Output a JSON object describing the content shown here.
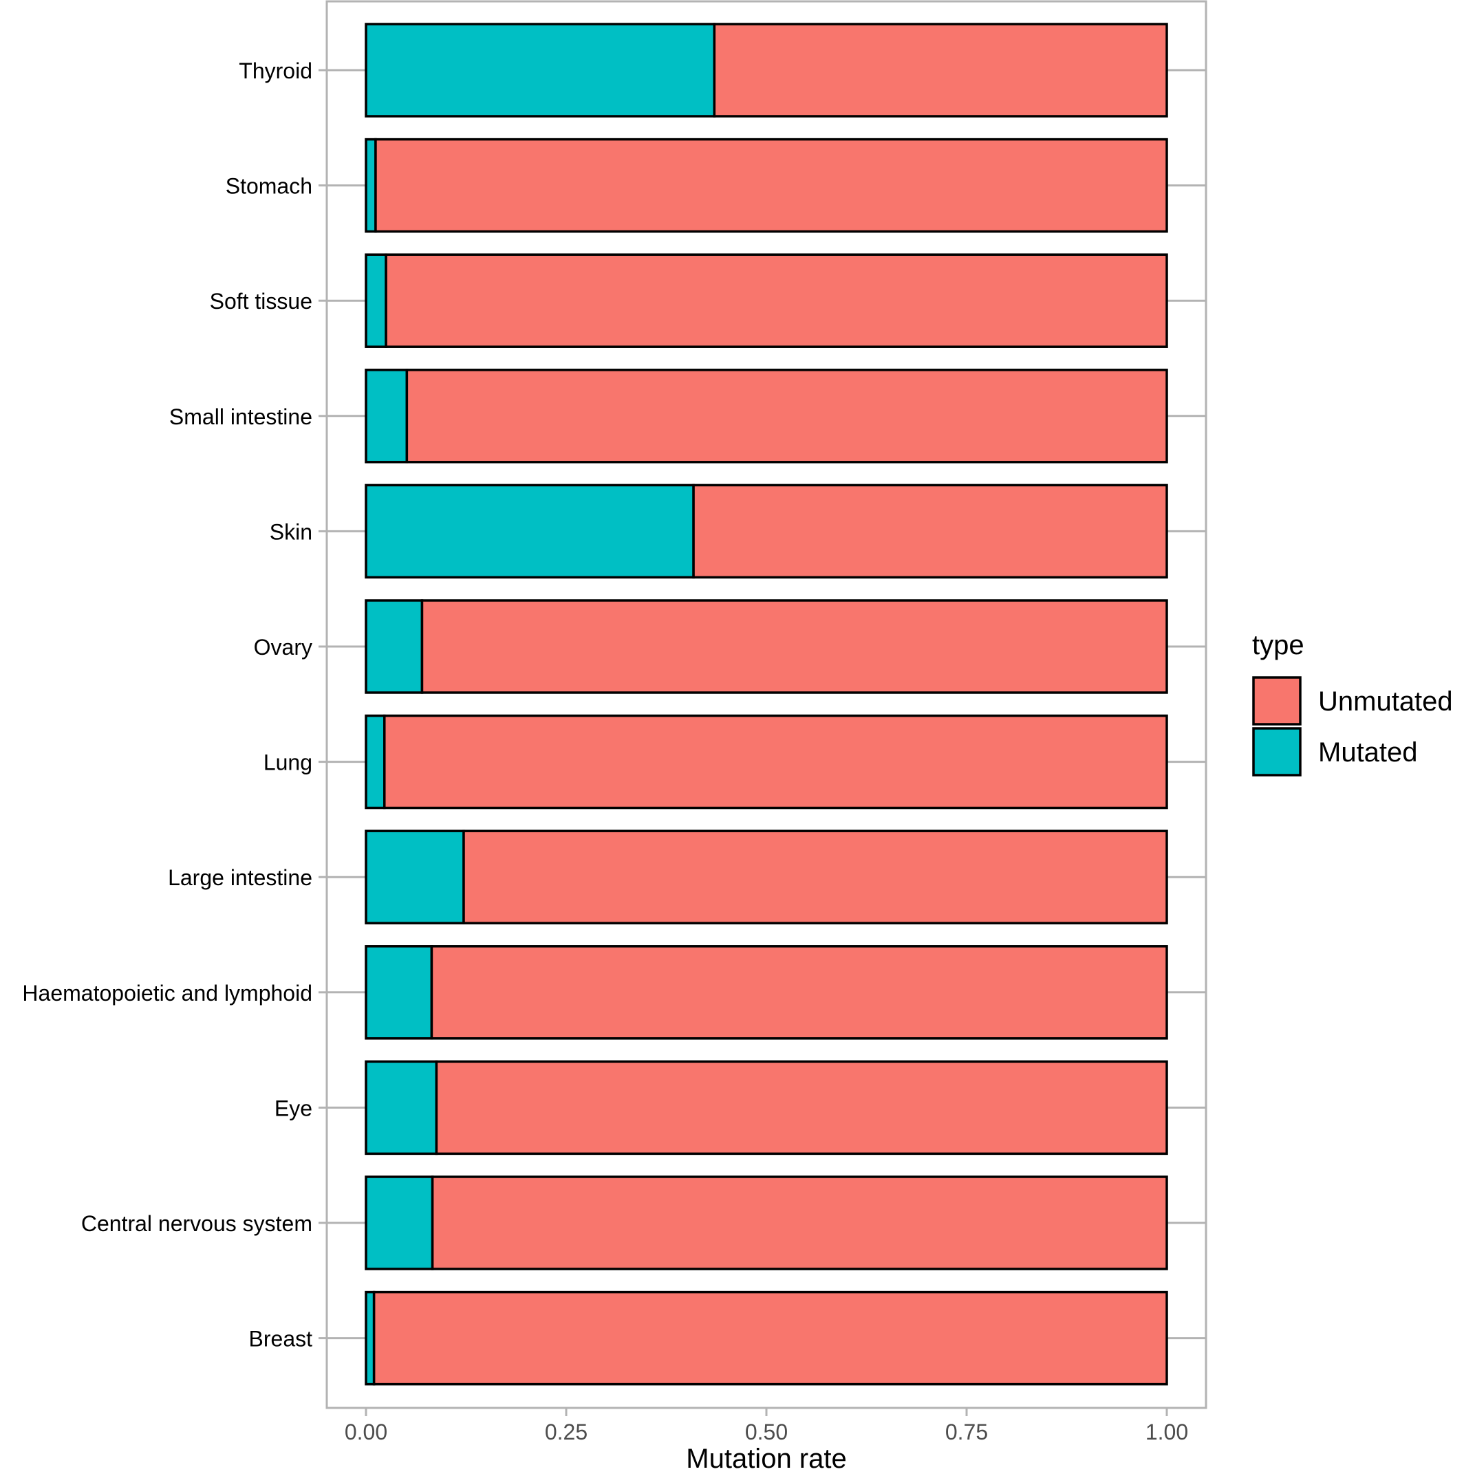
{
  "chart_data": {
    "type": "bar",
    "orientation": "horizontal",
    "stacked": true,
    "title": "",
    "xlabel": "Mutation rate",
    "ylabel": "",
    "xlim": [
      0,
      1
    ],
    "xticks": [
      "0.00",
      "0.25",
      "0.50",
      "0.75",
      "1.00"
    ],
    "grid": true,
    "legend_position": "right",
    "legend_title": "type",
    "categories": [
      "Thyroid",
      "Stomach",
      "Soft tissue",
      "Small intestine",
      "Skin",
      "Ovary",
      "Lung",
      "Large intestine",
      "Haematopoietic and lymphoid",
      "Eye",
      "Central nervous system",
      "Breast"
    ],
    "series": [
      {
        "name": "Mutated",
        "color": "#00bfc4",
        "values": [
          0.435,
          0.012,
          0.025,
          0.051,
          0.409,
          0.07,
          0.023,
          0.122,
          0.082,
          0.088,
          0.083,
          0.01
        ]
      },
      {
        "name": "Unmutated",
        "color": "#f8766d",
        "values": [
          0.565,
          0.988,
          0.975,
          0.949,
          0.591,
          0.93,
          0.977,
          0.878,
          0.918,
          0.912,
          0.917,
          0.99
        ]
      }
    ],
    "legend_order": [
      "Unmutated",
      "Mutated"
    ]
  }
}
